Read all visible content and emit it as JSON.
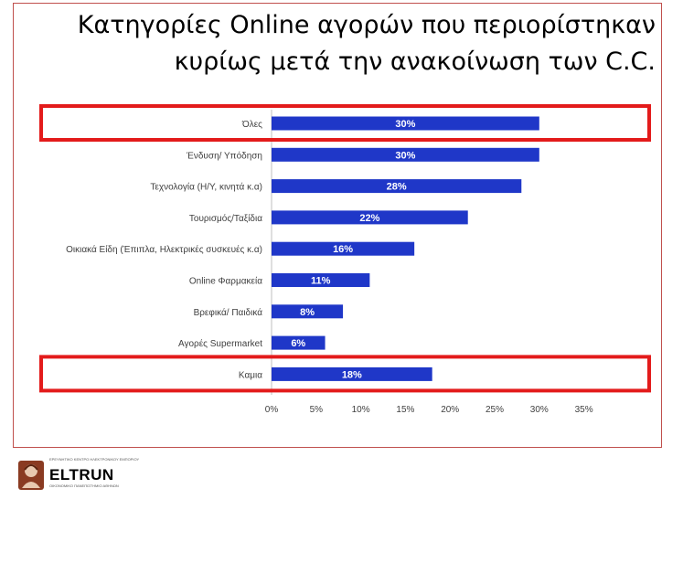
{
  "chart_data": {
    "type": "bar",
    "orientation": "horizontal",
    "title": "Κατηγορίες Online αγορών που περιορίστηκαν κυρίως μετά την ανακοίνωση των C.C.",
    "title_lines": [
      "Κατηγορίες Online αγορών που περιορίστηκαν",
      "κυρίως μετά την ανακοίνωση των C.C."
    ],
    "categories": [
      "Όλες",
      "Ένδυση/ Υπόδηση",
      "Τεχνολογία (Η/Υ, κινητά κ.α)",
      "Τουρισμός/Ταξίδια",
      "Οικιακά Είδη (Έπιπλα, Ηλεκτρικές συσκευές κ.α)",
      "Online Φαρμακεία",
      "Βρεφικά/ Παιδικά",
      "Αγορές Supermarket",
      "Καμια"
    ],
    "values": [
      30,
      30,
      28,
      22,
      16,
      11,
      8,
      6,
      18
    ],
    "data_labels": [
      "30%",
      "30%",
      "28%",
      "22%",
      "16%",
      "11%",
      "8%",
      "6%",
      "18%"
    ],
    "x_ticks": [
      "0%",
      "5%",
      "10%",
      "15%",
      "20%",
      "25%",
      "30%",
      "35%"
    ],
    "xlim": [
      0,
      35
    ],
    "highlighted_categories": [
      "Όλες",
      "Καμια"
    ],
    "bar_color": "#1f37c8",
    "highlight_color": "#e31b1b",
    "grid": false
  },
  "logo": {
    "tagline": "ΕΡΕΥΝΗΤΙΚΟ ΚΕΝΤΡΟ ΗΛΕΚΤΡΟΝΙΚΟΥ ΕΜΠΟΡΙΟΥ",
    "name": "ELTRUN",
    "subtitle": "ΟΙΚΟΝΟΜΙΚΟ ΠΑΝΕΠΙΣΤΗΜΙΟ ΑΘΗΝΩΝ"
  }
}
